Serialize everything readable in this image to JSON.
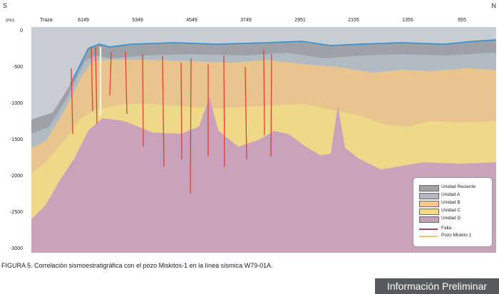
{
  "header": {
    "left_dir": "S",
    "right_dir": "N",
    "unit": "(ms)",
    "traza_label": "Traza"
  },
  "traces": [
    "6149",
    "5349",
    "4549",
    "3749",
    "2951",
    "2155",
    "1355",
    "555"
  ],
  "y_ticks": [
    "0",
    "-500",
    "-1000",
    "-1500",
    "-2000",
    "-2500",
    "-3000"
  ],
  "legend": {
    "items": [
      {
        "label": "Unidad Reciente",
        "color": "#a2a2a2"
      },
      {
        "label": "Unidad A",
        "color": "#b6b8bd"
      },
      {
        "label": "Unidad B",
        "color": "#f7c98b"
      },
      {
        "label": "Unidad C",
        "color": "#f3db8a"
      },
      {
        "label": "Unidad D",
        "color": "#c6a1bc"
      }
    ],
    "lines": [
      {
        "label": "Falla",
        "color": "#a0445f"
      },
      {
        "label": "Pozo Miskito 1",
        "color": "#f2c46a"
      }
    ]
  },
  "caption": "FIGURA 5. Correlación sismoestratigráfica con el pozo Miskitos-1 en la línea sísmica W79-01A.",
  "badge": "Información Preliminar"
}
